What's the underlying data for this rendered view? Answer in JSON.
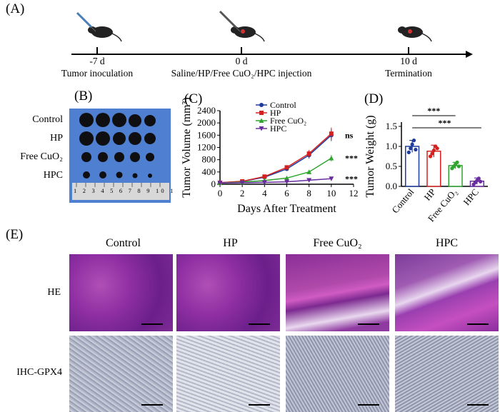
{
  "panels": {
    "A": "(A)",
    "B": "(B)",
    "C": "(C)",
    "D": "(D)",
    "E": "(E)"
  },
  "timeline": {
    "points": [
      {
        "day": "-7 d",
        "event": "Tumor inoculation"
      },
      {
        "day": "0 d",
        "event": "Saline/HP/Free CuO₂/HPC injection"
      },
      {
        "day": "10 d",
        "event": "Termination"
      }
    ]
  },
  "photo": {
    "rows": [
      "Control",
      "HP",
      "Free CuO₂",
      "HPC"
    ],
    "ruler_numbers": "1 2 3 4 5 6 7 8 9 10 1"
  },
  "chart_data": [
    {
      "type": "line",
      "xlabel": "Days After Treatment",
      "ylabel": "Tumor Volume (mm³)",
      "x": [
        0,
        2,
        4,
        6,
        8,
        10
      ],
      "xlim": [
        0,
        12
      ],
      "ylim": [
        0,
        2400
      ],
      "xticks": [
        0,
        2,
        4,
        6,
        8,
        10,
        12
      ],
      "yticks": [
        0,
        400,
        800,
        1200,
        1600,
        2000,
        2400
      ],
      "legend_position": "top",
      "series": [
        {
          "name": "Control",
          "color": "#1f3c9c",
          "marker": "circle",
          "values": [
            50,
            90,
            230,
            500,
            950,
            1600
          ]
        },
        {
          "name": "HP",
          "color": "#d62020",
          "marker": "square",
          "values": [
            50,
            95,
            250,
            550,
            1000,
            1650
          ]
        },
        {
          "name": "Free CuO₂",
          "color": "#2fa52f",
          "marker": "triangle",
          "values": [
            40,
            70,
            120,
            200,
            400,
            850
          ]
        },
        {
          "name": "HPC",
          "color": "#6a2da0",
          "marker": "triangle-down",
          "values": [
            40,
            50,
            60,
            80,
            130,
            180
          ]
        }
      ],
      "annotations": [
        "ns",
        "***",
        "***"
      ]
    },
    {
      "type": "bar",
      "ylabel": "Tumor Weight (g)",
      "categories": [
        "Control",
        "HP",
        "Free CuO₂",
        "HPC"
      ],
      "values": [
        1.0,
        0.88,
        0.52,
        0.13
      ],
      "errors": [
        0.15,
        0.15,
        0.08,
        0.08
      ],
      "colors": [
        "#1f3c9c",
        "#d62020",
        "#2fa52f",
        "#6a2da0"
      ],
      "ylim": [
        0,
        1.5
      ],
      "yticks": [
        "0.0",
        "0.5",
        "1.0",
        "1.5"
      ],
      "points": [
        [
          0.85,
          0.95,
          1.05,
          1.15,
          0.92
        ],
        [
          0.75,
          0.82,
          0.9,
          1.0,
          0.95
        ],
        [
          0.45,
          0.5,
          0.55,
          0.6,
          0.5
        ],
        [
          0.05,
          0.1,
          0.15,
          0.2,
          0.12
        ]
      ],
      "annotations": [
        "***",
        "***"
      ]
    }
  ],
  "histology": {
    "columns": [
      "Control",
      "HP",
      "Free CuO₂",
      "HPC"
    ],
    "rows": [
      "HE",
      "IHC-GPX4"
    ]
  }
}
